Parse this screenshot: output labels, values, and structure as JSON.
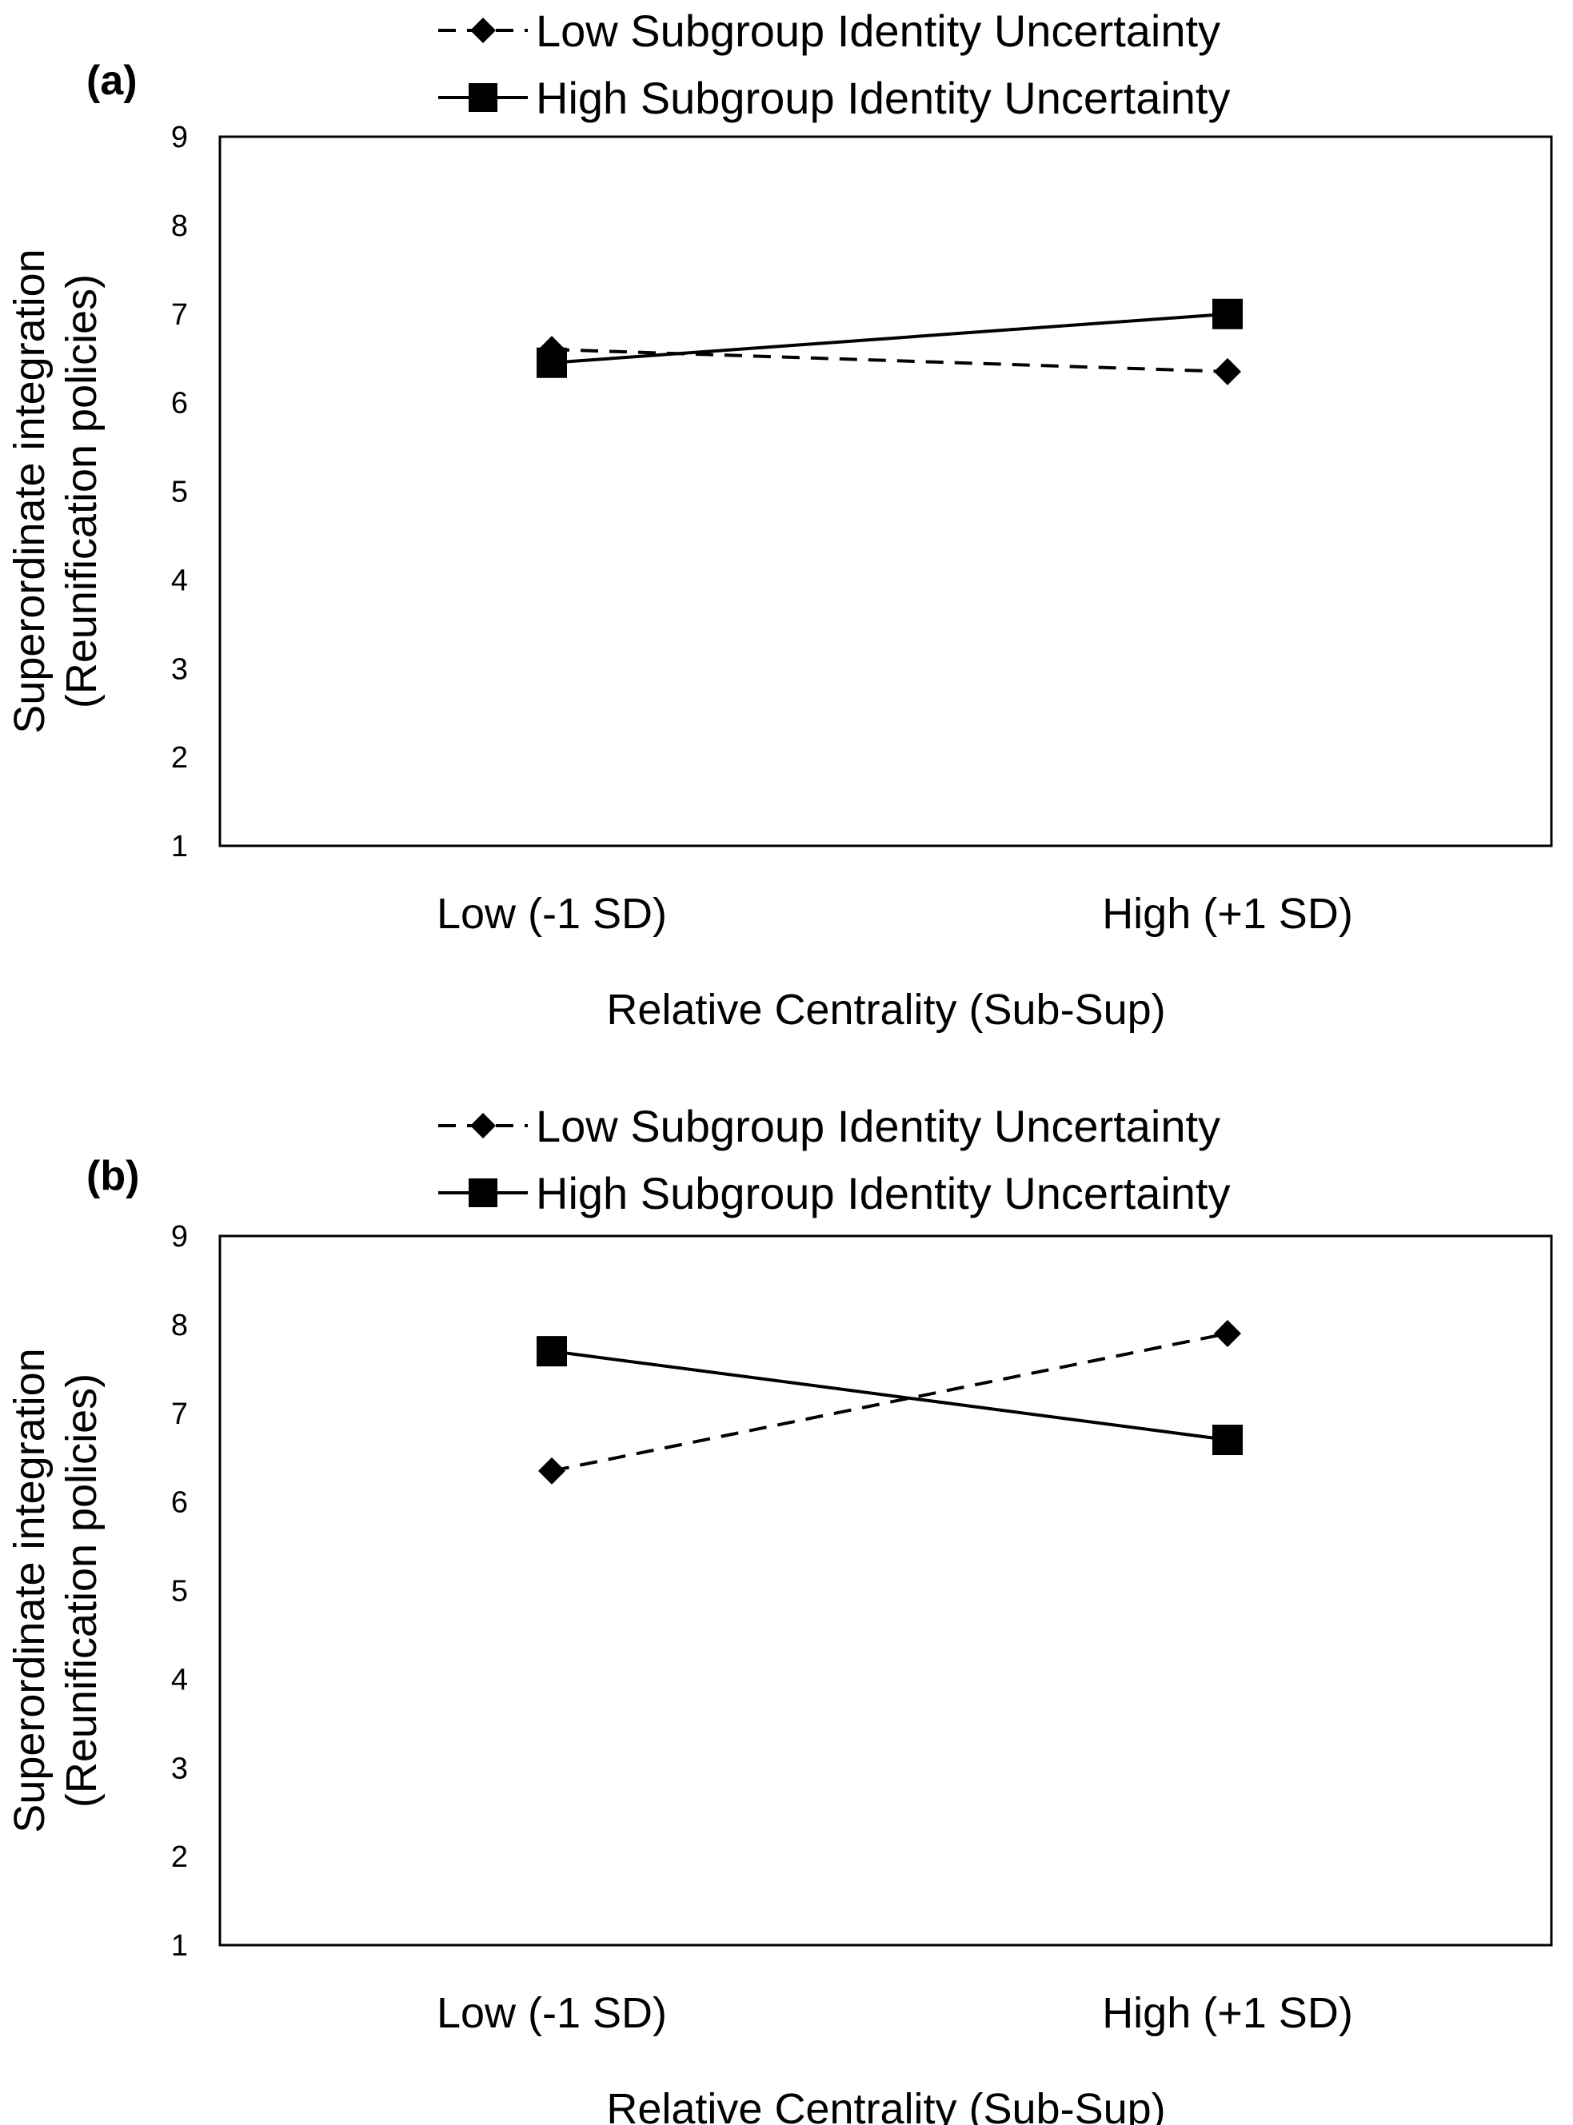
{
  "chart_data": [
    {
      "type": "line",
      "panel_label": "(a)",
      "xlabel": "Relative Centrality (Sub-Sup)",
      "ylabel_lines": [
        "Superordinate integration",
        "(Reunification policies)"
      ],
      "categories": [
        "Low (-1 SD)",
        "High (+1 SD)"
      ],
      "ylim": [
        1,
        9
      ],
      "yticks": [
        1,
        2,
        3,
        4,
        5,
        6,
        7,
        8,
        9
      ],
      "grid": false,
      "legend_position": "top",
      "series": [
        {
          "name": "Low Subgroup Identity Uncertainty",
          "marker": "diamond",
          "line_style": "dashed",
          "values": [
            6.6,
            6.35
          ]
        },
        {
          "name": "High Subgroup Identity Uncertainty",
          "marker": "square",
          "line_style": "solid",
          "values": [
            6.45,
            7.0
          ]
        }
      ]
    },
    {
      "type": "line",
      "panel_label": "(b)",
      "xlabel": "Relative Centrality (Sub-Sup)",
      "ylabel_lines": [
        "Superordinate integration",
        "(Reunification policies)"
      ],
      "categories": [
        "Low (-1 SD)",
        "High (+1 SD)"
      ],
      "ylim": [
        1,
        9
      ],
      "yticks": [
        1,
        2,
        3,
        4,
        5,
        6,
        7,
        8,
        9
      ],
      "grid": false,
      "legend_position": "top",
      "series": [
        {
          "name": "Low Subgroup Identity Uncertainty",
          "marker": "diamond",
          "line_style": "dashed",
          "values": [
            6.35,
            7.9
          ]
        },
        {
          "name": "High Subgroup Identity Uncertainty",
          "marker": "square",
          "line_style": "solid",
          "values": [
            7.7,
            6.7
          ]
        }
      ]
    }
  ]
}
